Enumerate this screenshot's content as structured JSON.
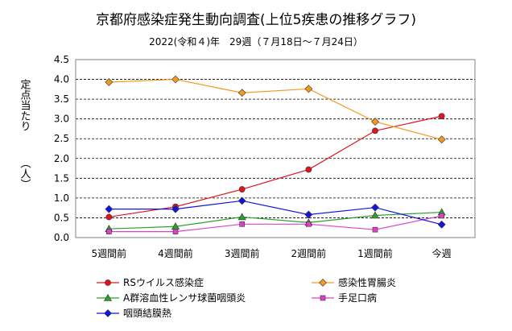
{
  "chart_data": {
    "type": "line",
    "title": "京都府感染症発生動向調査(上位5疾患の推移グラフ)",
    "subtitle": "2022(令和４)年　29週（７月18日～７月24日）",
    "ylabel_top": "定点当たり",
    "ylabel_unit": "（人）",
    "xlabel": "",
    "ylim": [
      0,
      4.5
    ],
    "yticks": [
      "0.0",
      "0.5",
      "1.0",
      "1.5",
      "2.0",
      "2.5",
      "3.0",
      "3.5",
      "4.0",
      "4.5"
    ],
    "grid": true,
    "legend_position": "bottom",
    "categories": [
      "5週間前",
      "4週間前",
      "3週間前",
      "2週間前",
      "1週間前",
      "今週"
    ],
    "series": [
      {
        "name": "RSウイルス感染症",
        "color": "#e0141e",
        "marker": "circle",
        "values": [
          0.52,
          0.78,
          1.22,
          1.72,
          2.7,
          3.07
        ]
      },
      {
        "name": "感染性胃腸炎",
        "color": "#f39a1e",
        "marker": "diamond",
        "values": [
          3.93,
          4.0,
          3.66,
          3.76,
          2.93,
          2.48
        ]
      },
      {
        "name": "A群溶血性レンサ球菌咽頭炎",
        "color": "#2ca02c",
        "marker": "triangle",
        "values": [
          0.22,
          0.28,
          0.52,
          0.38,
          0.56,
          0.64
        ]
      },
      {
        "name": "手足口病",
        "color": "#e040c8",
        "marker": "square",
        "values": [
          0.15,
          0.15,
          0.34,
          0.34,
          0.2,
          0.55
        ]
      },
      {
        "name": "咽頭結膜熱",
        "color": "#1414e0",
        "marker": "diamond",
        "values": [
          0.72,
          0.72,
          0.93,
          0.58,
          0.76,
          0.33
        ]
      }
    ]
  }
}
